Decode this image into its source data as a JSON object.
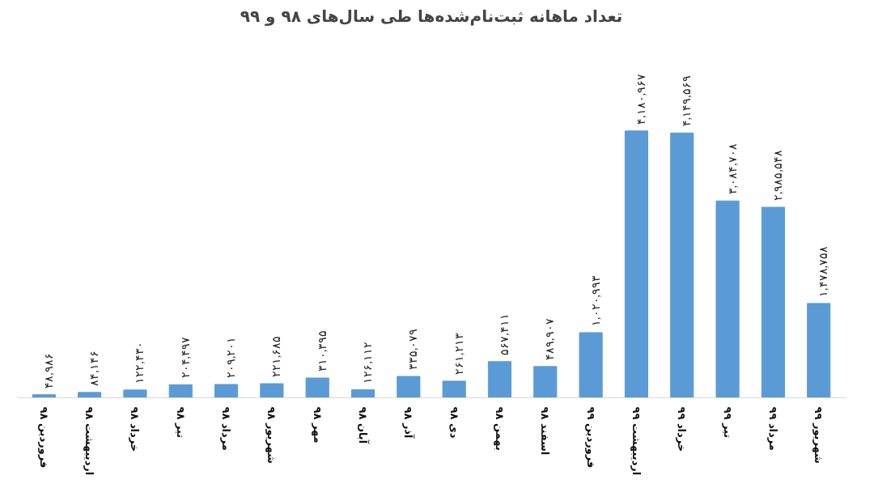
{
  "chart_data": {
    "type": "bar",
    "title": "تعداد ماهانه ثبت‌نام‌شده‌ها طی سال‌های ۹۸ و ۹۹",
    "categories": [
      "فروردین ۹۸",
      "اردیبهشت ۹۸",
      "خرداد ۹۸",
      "تیر ۹۸",
      "مرداد ۹۸",
      "شهریور ۹۸",
      "مهر ۹۸",
      "آبان ۹۸",
      "آذر ۹۸",
      "دی ۹۸",
      "بهمن ۹۸",
      "اسفند ۹۸",
      "فروردین ۹۹",
      "اردیبهشت ۹۹",
      "خرداد ۹۹",
      "تیر ۹۹",
      "مرداد ۹۹",
      "شهریور ۹۹"
    ],
    "values": [
      48986,
      84146,
      122430,
      204497,
      209201,
      221685,
      310395,
      126112,
      335079,
      261213,
      567411,
      489907,
      1020993,
      4180967,
      4149569,
      3084708,
      2985548,
      1478758
    ],
    "value_labels": [
      "۴۸,۹۸۶",
      "۸۴,۱۴۶",
      "۱۲۲,۴۳۰",
      "۲۰۴,۴۹۷",
      "۲۰۹,۲۰۱",
      "۲۲۱,۶۸۵",
      "۳۱۰,۳۹۵",
      "۱۲۶,۱۱۲",
      "۳۳۵,۰۷۹",
      "۲۶۱,۲۱۳",
      "۵۶۷,۴۱۱",
      "۴۸۹,۹۰۷",
      "۱,۰۲۰,۹۹۳",
      "۴,۱۸۰,۹۶۷",
      "۴,۱۴۹,۵۶۹",
      "۳,۰۸۴,۷۰۸",
      "۲,۹۸۵,۵۴۸",
      "۱,۴۷۸,۷۵۸"
    ],
    "color": "#5b9bd5",
    "grid": false
  }
}
